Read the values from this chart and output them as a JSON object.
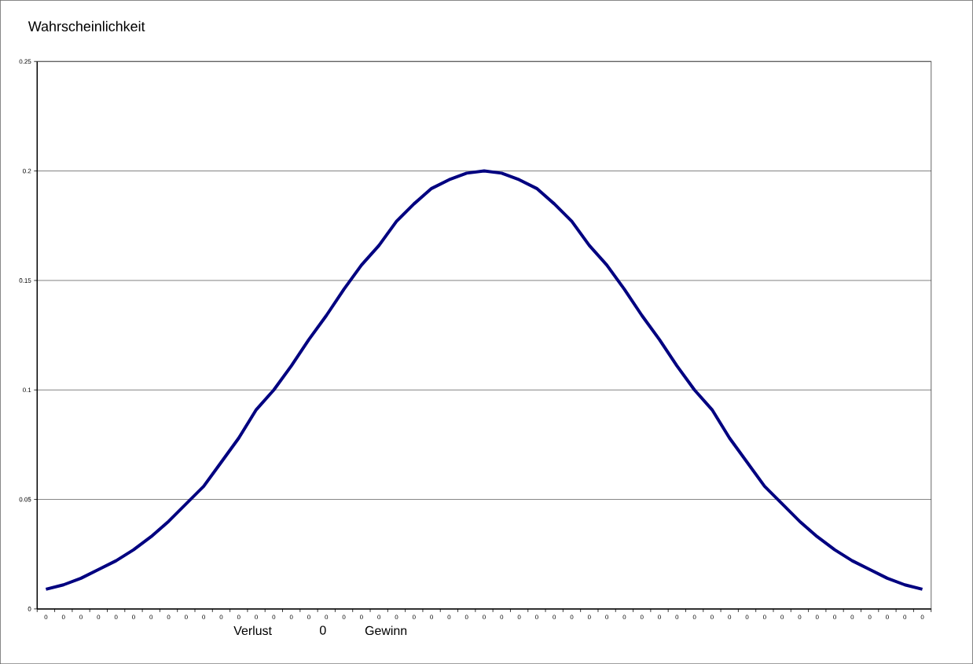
{
  "chart_data": {
    "type": "line",
    "ylabel": "Wahrscheinlichkeit",
    "categories": [
      "0",
      "0",
      "0",
      "0",
      "0",
      "0",
      "0",
      "0",
      "0",
      "0",
      "0",
      "0",
      "0",
      "0",
      "0",
      "0",
      "0",
      "0",
      "0",
      "0",
      "0",
      "0",
      "0",
      "0",
      "0",
      "0",
      "0",
      "0",
      "0",
      "0",
      "0",
      "0",
      "0",
      "0",
      "0",
      "0",
      "0",
      "0",
      "0",
      "0",
      "0",
      "0",
      "0",
      "0",
      "0",
      "0",
      "0",
      "0",
      "0",
      "0",
      "0"
    ],
    "series": [
      {
        "color": "#000080",
        "values": [
          0.009,
          0.011,
          0.014,
          0.018,
          0.022,
          0.027,
          0.033,
          0.04,
          0.048,
          0.056,
          0.067,
          0.078,
          0.091,
          0.1,
          0.111,
          0.123,
          0.134,
          0.146,
          0.157,
          0.166,
          0.177,
          0.185,
          0.192,
          0.196,
          0.199,
          0.2,
          0.199,
          0.196,
          0.192,
          0.185,
          0.177,
          0.166,
          0.157,
          0.146,
          0.134,
          0.123,
          0.111,
          0.1,
          0.091,
          0.078,
          0.067,
          0.056,
          0.048,
          0.04,
          0.033,
          0.027,
          0.022,
          0.018,
          0.014,
          0.011,
          0.009
        ]
      }
    ],
    "ylim": [
      0,
      0.25
    ],
    "yticks": [
      0,
      0.05,
      0.1,
      0.15,
      0.2,
      0.25
    ],
    "grid": "y",
    "marker": "none",
    "line_style": "solid",
    "annotations": [
      "Verlust",
      "0",
      "Gewinn"
    ]
  }
}
